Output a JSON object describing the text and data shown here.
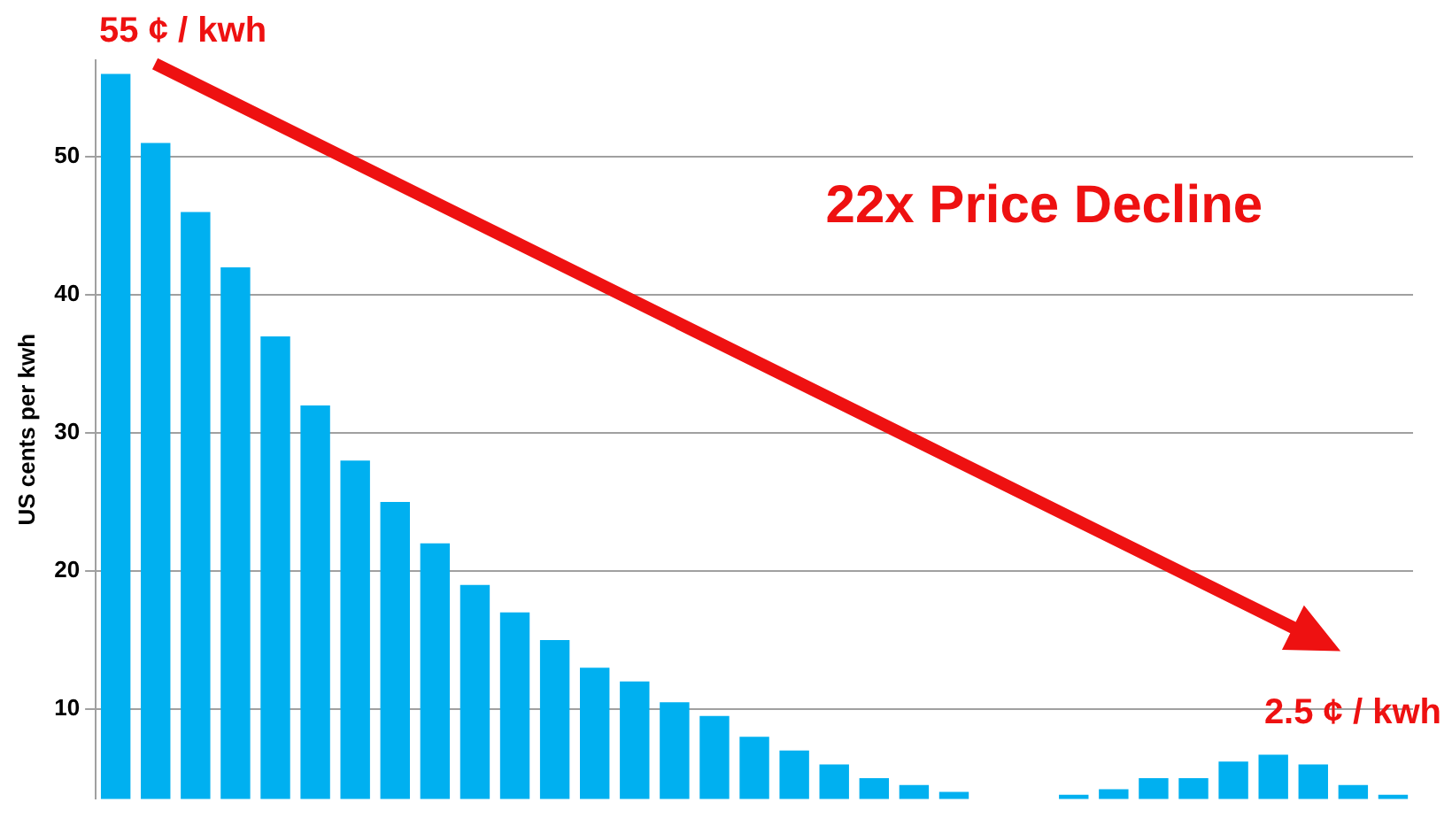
{
  "chart_data": {
    "type": "bar",
    "title": "22x Price Decline",
    "ylabel": "US cents per kwh",
    "categories": [
      null,
      null,
      null,
      null,
      null,
      null,
      null,
      null,
      null,
      null,
      null,
      null,
      null,
      null,
      null,
      null,
      null,
      null,
      null,
      null,
      null,
      null,
      null,
      null,
      null,
      null,
      null,
      null,
      null,
      null,
      null,
      null,
      null
    ],
    "values": [
      56,
      51,
      46,
      42,
      37,
      32,
      28,
      25,
      22,
      19,
      17,
      15,
      13,
      12,
      10.5,
      9.5,
      8,
      7,
      6,
      5,
      4.5,
      4,
      null,
      null,
      3.8,
      4.2,
      5,
      5,
      6.2,
      6.7,
      6,
      4.5,
      3.8
    ],
    "color": "#00b0f0",
    "ylim": [
      3.5,
      57
    ],
    "yticks": [
      10,
      20,
      30,
      40,
      50
    ],
    "grid": "y",
    "legend": false,
    "annotations": [
      "55 ¢ / kwh",
      "2.5 ¢ / kwh"
    ]
  }
}
